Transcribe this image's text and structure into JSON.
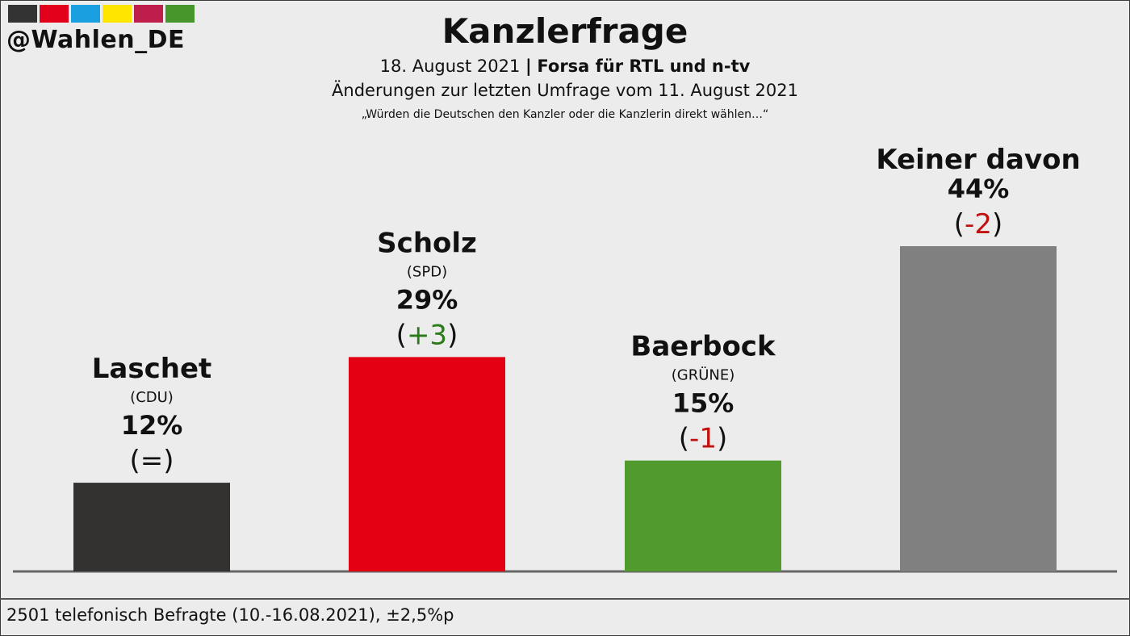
{
  "branding": {
    "handle": "@Wahlen_DE",
    "strip_colors": [
      "#333333",
      "#e2001a",
      "#1aa0e0",
      "#ffe600",
      "#be1e4b",
      "#46962b"
    ]
  },
  "header": {
    "title": "Kanzlerfrage",
    "date": "18. August 2021",
    "separator": "|",
    "source": "Forsa für RTL und n-tv",
    "comparison": "Änderungen zur letzten Umfrage vom 11. August 2021",
    "question": "„Würden die Deutschen den Kanzler oder die Kanzlerin direkt wählen…“"
  },
  "chart_data": {
    "type": "bar",
    "title": "Kanzlerfrage",
    "categories": [
      "Laschet",
      "Scholz",
      "Baerbock",
      "Keiner davon"
    ],
    "parties": [
      "(CDU)",
      "(SPD)",
      "(GRÜNE)",
      ""
    ],
    "values": [
      12,
      29,
      15,
      44
    ],
    "value_labels": [
      "12%",
      "29%",
      "15%",
      "44%"
    ],
    "changes": [
      "=",
      "+3",
      "-1",
      "-2"
    ],
    "colors": [
      "#333230",
      "#e30013",
      "#519a2d",
      "#808080"
    ],
    "change_colors": [
      "#111111",
      "#2a7a1a",
      "#c01010",
      "#c01010"
    ],
    "unit": "%",
    "ylim": [
      0,
      44
    ],
    "grid": false,
    "legend": "none"
  },
  "footer": {
    "note": "2501 telefonisch Befragte (10.-16.08.2021), ±2,5%p"
  }
}
